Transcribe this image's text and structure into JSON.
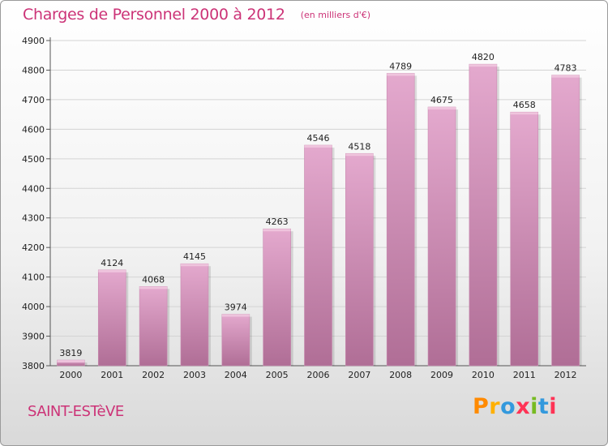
{
  "header": {
    "title": "Charges de Personnel 2000 à 2012",
    "subtitle": "(en milliers d'€)"
  },
  "footer": {
    "commune": "SAINT-ESTèVE",
    "brand": "Proxiti"
  },
  "colors": {
    "title": "#cc3377",
    "bar_top": "#e4a9ce",
    "bar_bottom": "#b06e96",
    "logo_letters": [
      "#ff8a00",
      "#ffb000",
      "#3399dd",
      "#ff3355",
      "#77bb22",
      "#3399dd",
      "#ff3355"
    ]
  },
  "chart_data": {
    "type": "bar",
    "title": "Charges de Personnel 2000 à 2012",
    "subtitle": "(en milliers d'€)",
    "xlabel": "",
    "ylabel": "",
    "categories": [
      "2000",
      "2001",
      "2002",
      "2003",
      "2004",
      "2005",
      "2006",
      "2007",
      "2008",
      "2009",
      "2010",
      "2011",
      "2012"
    ],
    "values": [
      3819,
      4124,
      4068,
      4145,
      3974,
      4263,
      4546,
      4518,
      4789,
      4675,
      4820,
      4658,
      4783
    ],
    "ylim": [
      3800,
      4900
    ],
    "yticks": [
      3800,
      3900,
      4000,
      4100,
      4200,
      4300,
      4400,
      4500,
      4600,
      4700,
      4800,
      4900
    ],
    "grid": true,
    "legend": "none"
  }
}
